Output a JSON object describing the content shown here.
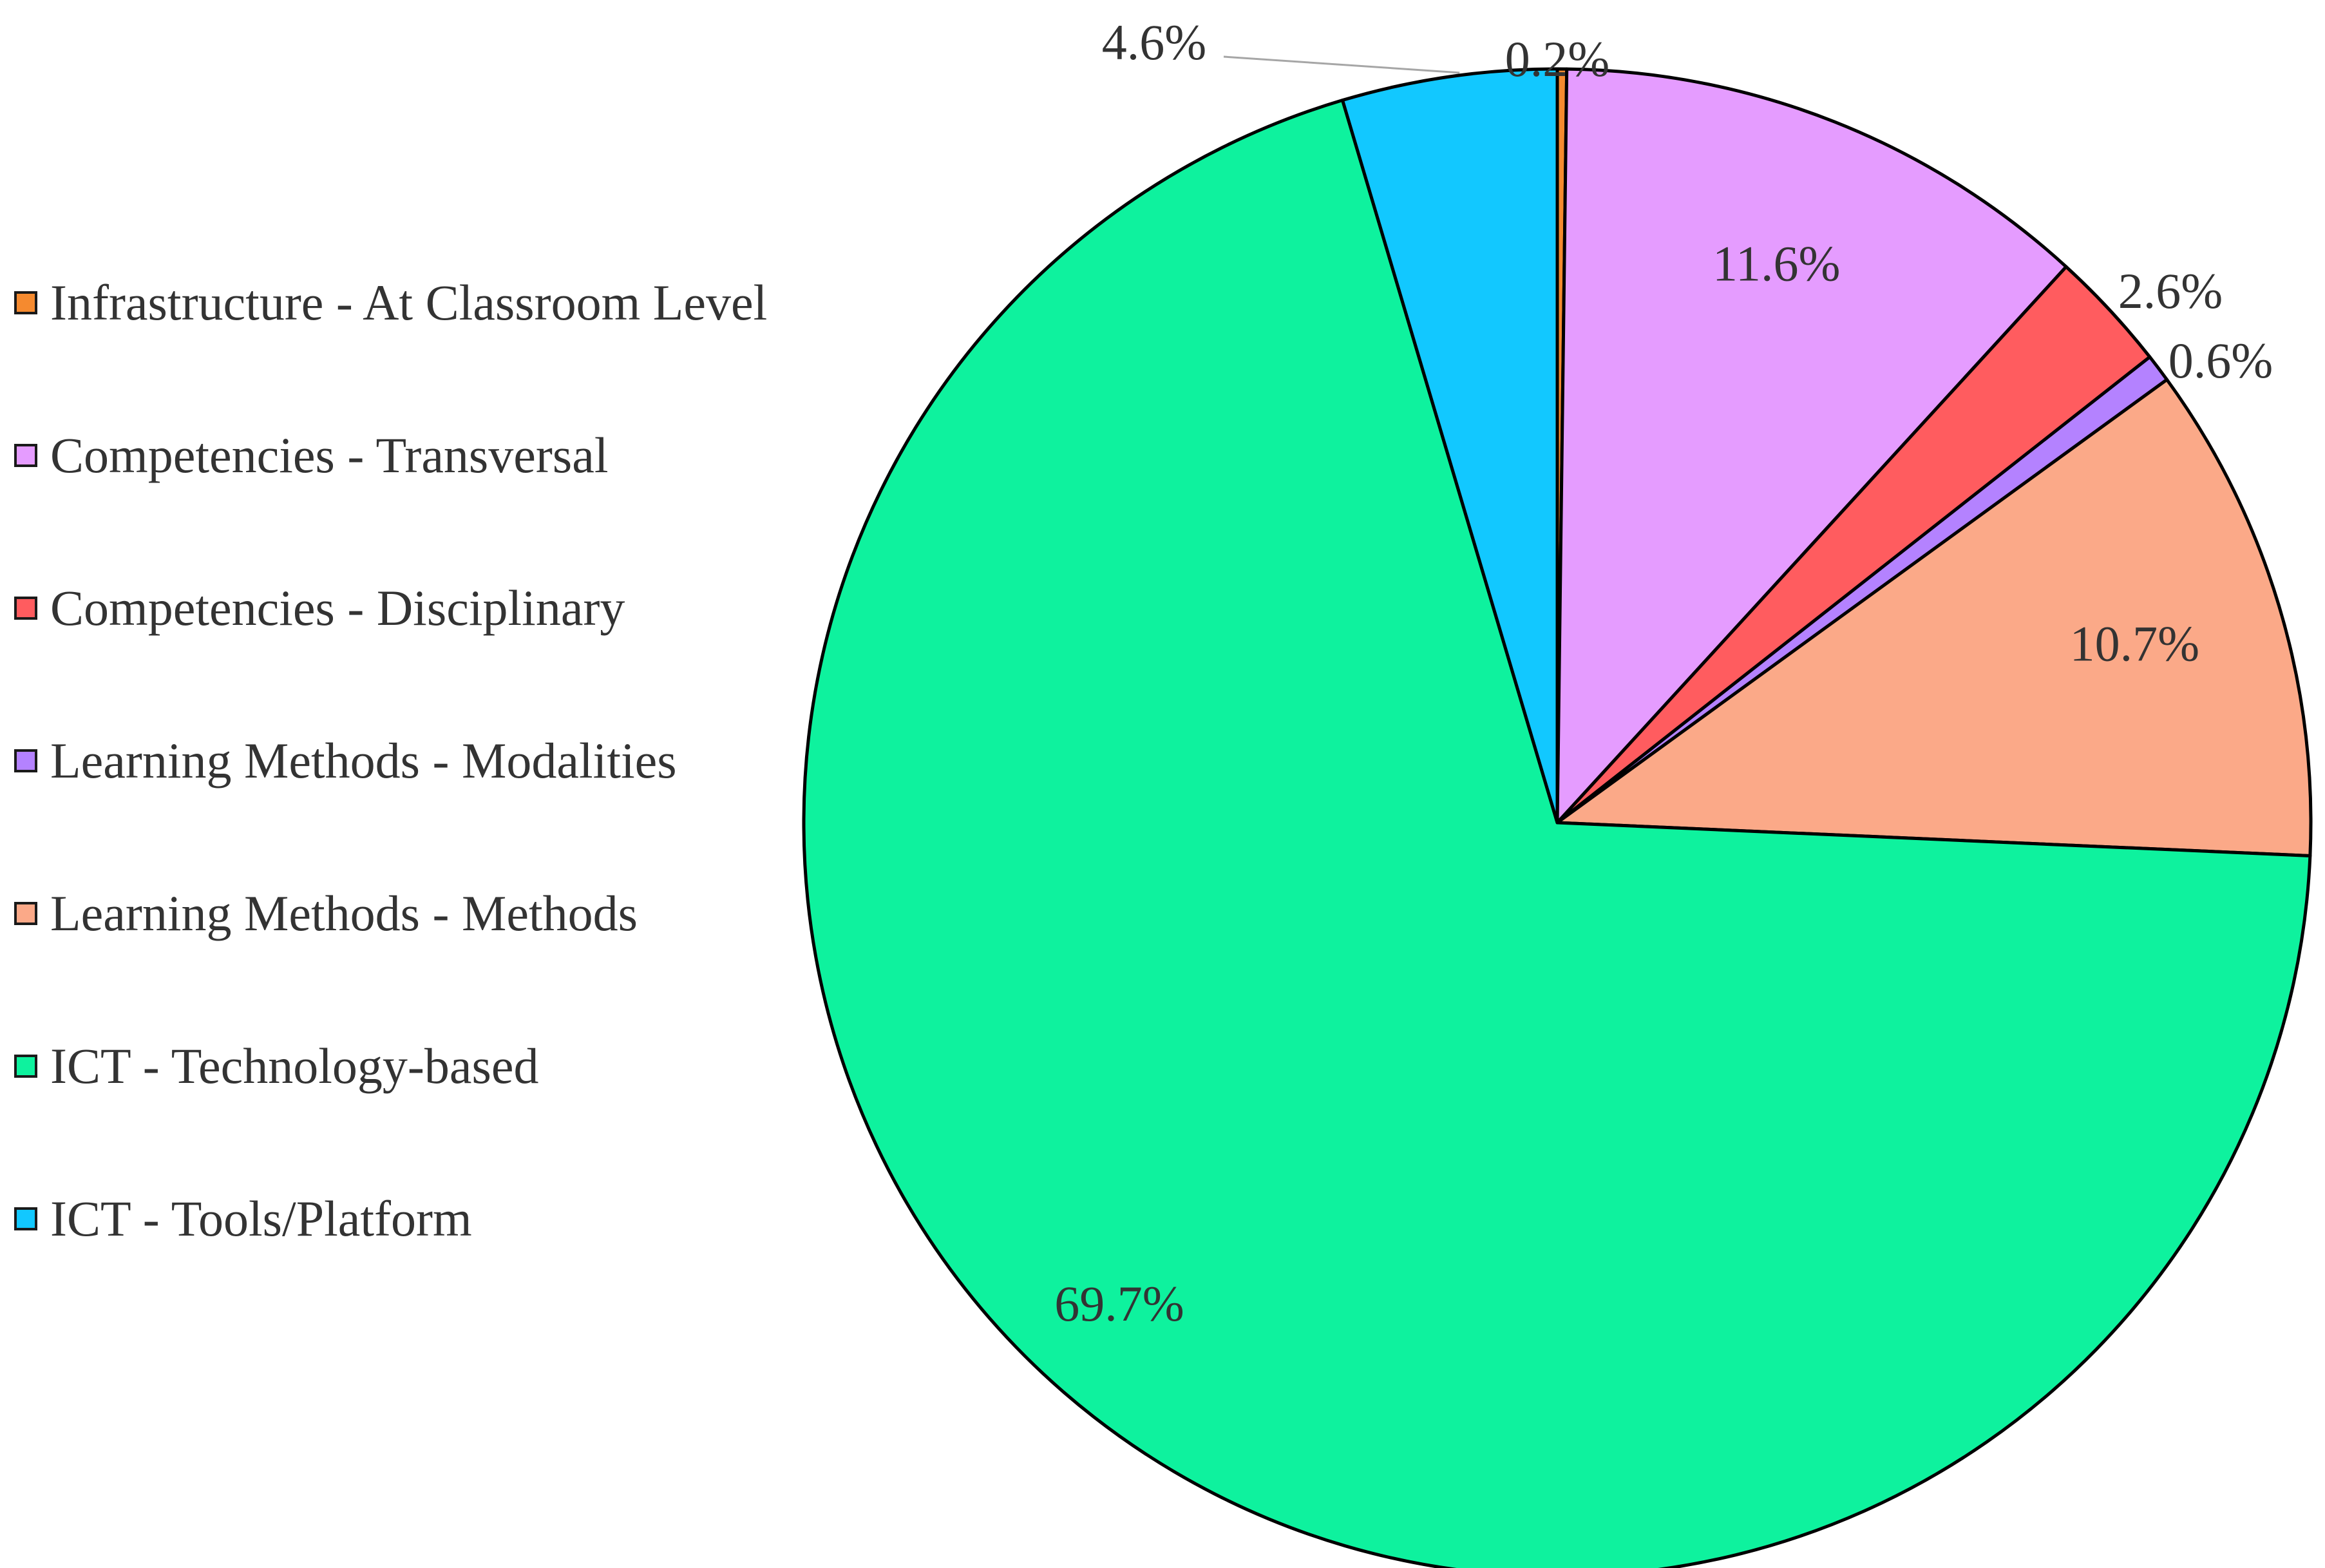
{
  "chart_data": {
    "type": "pie",
    "title": "",
    "legend_position": "left",
    "slices": [
      {
        "name": "Infrastructure - At Classroom Level",
        "value": 0.2,
        "label": "0.2%",
        "color": "#F58A2F"
      },
      {
        "name": "Competencies - Transversal",
        "value": 11.6,
        "label": "11.6%",
        "color": "#E59CFF"
      },
      {
        "name": "Competencies - Disciplinary",
        "value": 2.6,
        "label": "2.6%",
        "color": "#FF5C5F"
      },
      {
        "name": "Learning Methods - Modalities",
        "value": 0.6,
        "label": "0.6%",
        "color": "#B482FF"
      },
      {
        "name": "Learning Methods - Methods",
        "value": 10.7,
        "label": "10.7%",
        "color": "#FBA988"
      },
      {
        "name": "ICT - Technology-based",
        "value": 69.7,
        "label": "69.7%",
        "color": "#0EF29E"
      },
      {
        "name": "ICT - Tools/Platform",
        "value": 4.6,
        "label": "4.6%",
        "color": "#12C8FF"
      }
    ]
  }
}
